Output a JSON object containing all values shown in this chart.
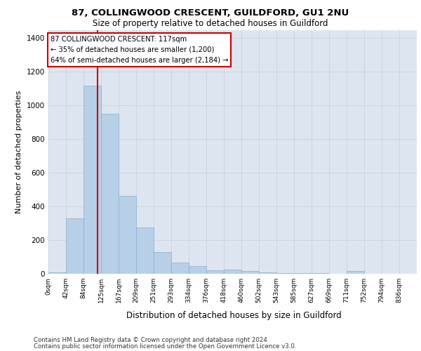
{
  "title1": "87, COLLINGWOOD CRESCENT, GUILDFORD, GU1 2NU",
  "title2": "Size of property relative to detached houses in Guildford",
  "xlabel": "Distribution of detached houses by size in Guildford",
  "ylabel": "Number of detached properties",
  "footnote1": "Contains HM Land Registry data © Crown copyright and database right 2024.",
  "footnote2": "Contains public sector information licensed under the Open Government Licence v3.0.",
  "bar_labels": [
    "0sqm",
    "42sqm",
    "84sqm",
    "125sqm",
    "167sqm",
    "209sqm",
    "251sqm",
    "293sqm",
    "334sqm",
    "376sqm",
    "418sqm",
    "460sqm",
    "502sqm",
    "543sqm",
    "585sqm",
    "627sqm",
    "669sqm",
    "711sqm",
    "752sqm",
    "794sqm",
    "836sqm"
  ],
  "bar_values": [
    10,
    330,
    1120,
    950,
    465,
    275,
    130,
    65,
    46,
    20,
    25,
    18,
    10,
    5,
    5,
    5,
    0,
    15,
    0,
    0,
    0
  ],
  "bar_color": "#b8cfe8",
  "bar_edge_color": "#8aafd4",
  "grid_color": "#c8d0dc",
  "bg_color": "#dde6f0",
  "vline_color": "#cc0000",
  "annotation_lines": [
    "87 COLLINGWOOD CRESCENT: 117sqm",
    "← 35% of detached houses are smaller (1,200)",
    "64% of semi-detached houses are larger (2,184) →"
  ],
  "annotation_box_color": "#ffffff",
  "annotation_box_edge": "#cc0000",
  "ylim": [
    0,
    1450
  ],
  "yticks": [
    0,
    200,
    400,
    600,
    800,
    1000,
    1200,
    1400
  ]
}
